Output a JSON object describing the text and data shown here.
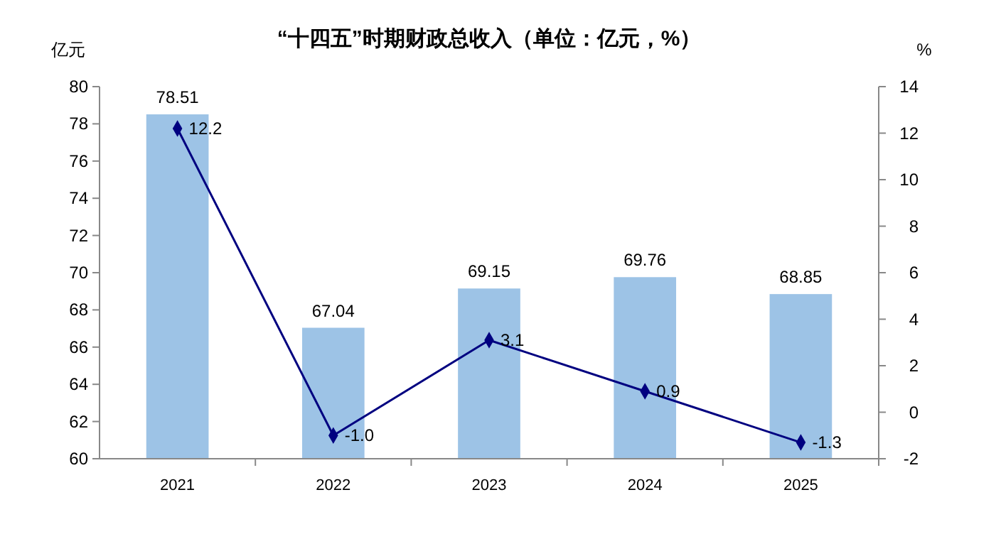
{
  "chart_data": {
    "type": "bar",
    "title": "“十四五”时期财政总收入（单位：亿元，%）",
    "ylabel": "亿元",
    "y2label": "%",
    "categories": [
      "2021",
      "2022",
      "2023",
      "2024",
      "2025"
    ],
    "series": [
      {
        "color": "#9dc3e6",
        "values": [
          78.51,
          67.04,
          69.15,
          69.76,
          68.85
        ],
        "value_labels": [
          "78.51",
          "67.04",
          "69.15",
          "69.76",
          "68.85"
        ]
      },
      {
        "type": "line",
        "axis": "y2",
        "color": "#000080",
        "marker": "diamond",
        "values": [
          12.2,
          -1.0,
          3.1,
          0.9,
          -1.3
        ],
        "value_labels": [
          "12.2",
          "-1.0",
          "3.1",
          "0.9",
          "-1.3"
        ]
      }
    ],
    "ylim": [
      60,
      80
    ],
    "yticks": [
      60,
      62,
      64,
      66,
      68,
      70,
      72,
      74,
      76,
      78,
      80
    ],
    "y2lim": [
      -2,
      14
    ],
    "y2ticks": [
      -2,
      0,
      2,
      4,
      6,
      8,
      10,
      12,
      14
    ],
    "grid": false
  }
}
